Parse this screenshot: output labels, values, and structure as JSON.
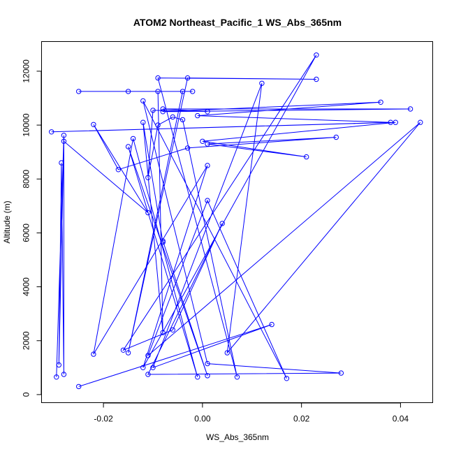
{
  "chart_data": {
    "type": "line",
    "title": "ATOM2 Northeast_Pacific_1 WS_Abs_365nm",
    "xlabel": "WS_Abs_365nm",
    "ylabel": "Altitude (m)",
    "xlim": [
      -0.0325,
      0.0465
    ],
    "ylim": [
      -300,
      13100
    ],
    "xticks": [
      {
        "value": -0.02,
        "label": "-0.02"
      },
      {
        "value": 0.0,
        "label": "0.00"
      },
      {
        "value": 0.02,
        "label": "0.02"
      },
      {
        "value": 0.04,
        "label": "0.04"
      }
    ],
    "yticks": [
      {
        "value": 0,
        "label": "0"
      },
      {
        "value": 2000,
        "label": "2000"
      },
      {
        "value": 4000,
        "label": "4000"
      },
      {
        "value": 6000,
        "label": "6000"
      },
      {
        "value": 8000,
        "label": "8000"
      },
      {
        "value": 10000,
        "label": "10000"
      },
      {
        "value": 12000,
        "label": "12000"
      }
    ],
    "series": [
      {
        "color": "#0000ff",
        "marker": "circle-open",
        "points": [
          {
            "x": -0.0295,
            "y": 650
          },
          {
            "x": -0.028,
            "y": 9620
          },
          {
            "x": -0.028,
            "y": 750
          },
          {
            "x": -0.0285,
            "y": 8600
          },
          {
            "x": -0.029,
            "y": 1100
          },
          {
            "x": -0.028,
            "y": 9400
          },
          {
            "x": -0.011,
            "y": 6750
          },
          {
            "x": -0.022,
            "y": 10020
          },
          {
            "x": -0.017,
            "y": 8350
          },
          {
            "x": -0.003,
            "y": 9150
          },
          {
            "x": 0.027,
            "y": 9550
          },
          {
            "x": 0.001,
            "y": 9300
          },
          {
            "x": 0.021,
            "y": 8820
          },
          {
            "x": 0.0,
            "y": 9400
          },
          {
            "x": 0.039,
            "y": 10100
          },
          {
            "x": -0.0305,
            "y": 9750
          },
          {
            "x": 0.038,
            "y": 10100
          },
          {
            "x": -0.001,
            "y": 10350
          },
          {
            "x": 0.036,
            "y": 10850
          },
          {
            "x": -0.008,
            "y": 10500
          },
          {
            "x": 0.042,
            "y": 10600
          },
          {
            "x": -0.008,
            "y": 10600
          },
          {
            "x": 0.001,
            "y": 10500
          },
          {
            "x": -0.01,
            "y": 10550
          },
          {
            "x": -0.011,
            "y": 8050
          },
          {
            "x": -0.009,
            "y": 10000
          },
          {
            "x": -0.006,
            "y": 10300
          },
          {
            "x": -0.004,
            "y": 10200
          },
          {
            "x": 0.007,
            "y": 650
          },
          {
            "x": -0.009,
            "y": 11750
          },
          {
            "x": 0.023,
            "y": 11700
          },
          {
            "x": -0.003,
            "y": 11750
          },
          {
            "x": -0.015,
            "y": 1550
          },
          {
            "x": -0.004,
            "y": 11250
          },
          {
            "x": -0.025,
            "y": 11250
          },
          {
            "x": -0.002,
            "y": 11250
          },
          {
            "x": -0.015,
            "y": 11250
          },
          {
            "x": -0.009,
            "y": 11250
          },
          {
            "x": -0.008,
            "y": 2300
          },
          {
            "x": -0.012,
            "y": 10100
          },
          {
            "x": -0.008,
            "y": 5650
          },
          {
            "x": -0.008,
            "y": 5700
          },
          {
            "x": 0.001,
            "y": 700
          },
          {
            "x": -0.015,
            "y": 9200
          },
          {
            "x": -0.001,
            "y": 650
          },
          {
            "x": -0.014,
            "y": 9500
          },
          {
            "x": -0.022,
            "y": 1500
          },
          {
            "x": 0.001,
            "y": 8500
          },
          {
            "x": -0.012,
            "y": 1000
          },
          {
            "x": 0.023,
            "y": 12600
          },
          {
            "x": -0.016,
            "y": 1650
          },
          {
            "x": -0.006,
            "y": 2400
          },
          {
            "x": 0.004,
            "y": 6350
          },
          {
            "x": -0.011,
            "y": 750
          },
          {
            "x": 0.028,
            "y": 800
          },
          {
            "x": 0.001,
            "y": 1150
          },
          {
            "x": -0.012,
            "y": 10900
          },
          {
            "x": 0.017,
            "y": 600
          },
          {
            "x": 0.001,
            "y": 7200
          },
          {
            "x": -0.011,
            "y": 1450
          },
          {
            "x": 0.044,
            "y": 10100
          },
          {
            "x": 0.005,
            "y": 1550
          },
          {
            "x": 0.012,
            "y": 11550
          },
          {
            "x": -0.01,
            "y": 1000
          },
          {
            "x": 0.014,
            "y": 2600
          },
          {
            "x": -0.025,
            "y": 300
          }
        ]
      }
    ]
  }
}
